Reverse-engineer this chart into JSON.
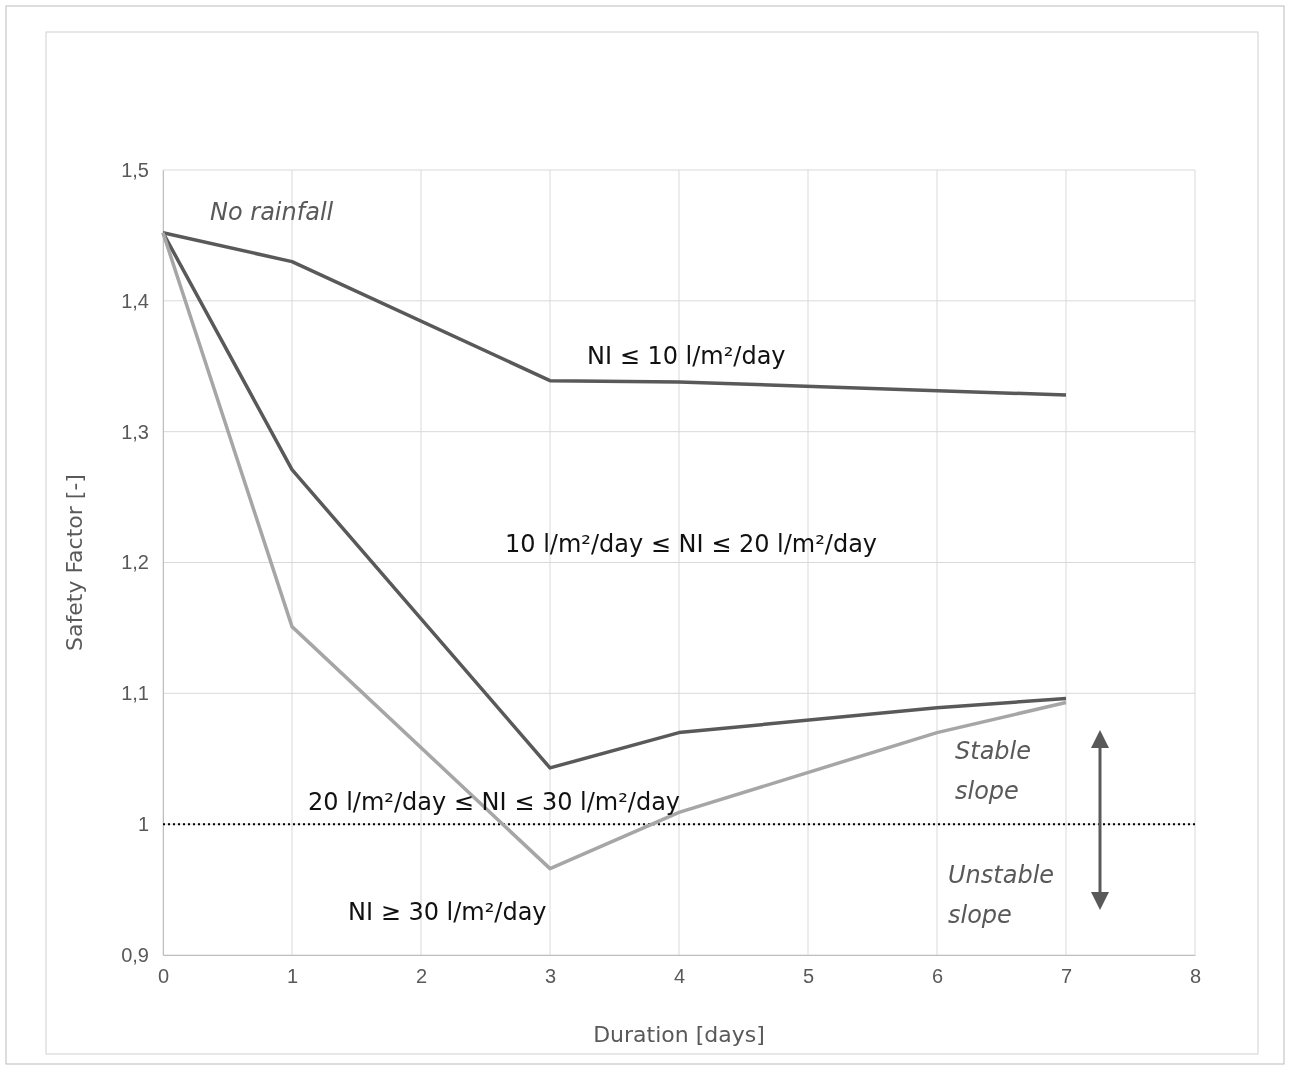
{
  "chart_data": {
    "type": "line",
    "xlabel": "Duration [days]",
    "ylabel": "Safety Factor [-]",
    "xlim": [
      0,
      8
    ],
    "xticks": [
      0,
      1,
      2,
      3,
      4,
      5,
      6,
      7,
      8
    ],
    "ylim": [
      0.9,
      1.5
    ],
    "yticks": [
      {
        "value": 0.9,
        "label": "0,9"
      },
      {
        "value": 1,
        "label": "1"
      },
      {
        "value": 1.1,
        "label": "1,1"
      },
      {
        "value": 1.2,
        "label": "1,2"
      },
      {
        "value": 1.3,
        "label": "1,3"
      },
      {
        "value": 1.4,
        "label": "1,4"
      },
      {
        "value": 1.5,
        "label": "1,5"
      }
    ],
    "grid": true,
    "marker": "none",
    "line_style": "solid",
    "series": [
      {
        "color": "#595959",
        "x": [
          0,
          1,
          3,
          4,
          7
        ],
        "values": [
          1.452,
          1.43,
          1.339,
          1.338,
          1.328
        ]
      },
      {
        "color": "#595959",
        "x": [
          0,
          1,
          3,
          4,
          6,
          7
        ],
        "values": [
          1.452,
          1.271,
          1.043,
          1.07,
          1.089,
          1.096
        ]
      },
      {
        "color": "#a6a6a6",
        "x": [
          0,
          1,
          3,
          4,
          6,
          7
        ],
        "values": [
          1.452,
          1.151,
          0.966,
          1.009,
          1.07,
          1.093
        ]
      }
    ],
    "ref_lines": [
      {
        "axis": "y",
        "value": 1,
        "color": "#000000",
        "line_style": "dotted"
      }
    ],
    "annotations": [
      "No rainfall",
      "NI ≤ 10 l/m²/day",
      "10 l/m²/day  ≤ NI ≤ 20 l/m²/day",
      "20 l/m²/day ≤ NI ≤ 30 l/m²/day",
      "NI ≥ 30 l/m²/day",
      "Stable slope",
      "Unstable slope"
    ]
  }
}
